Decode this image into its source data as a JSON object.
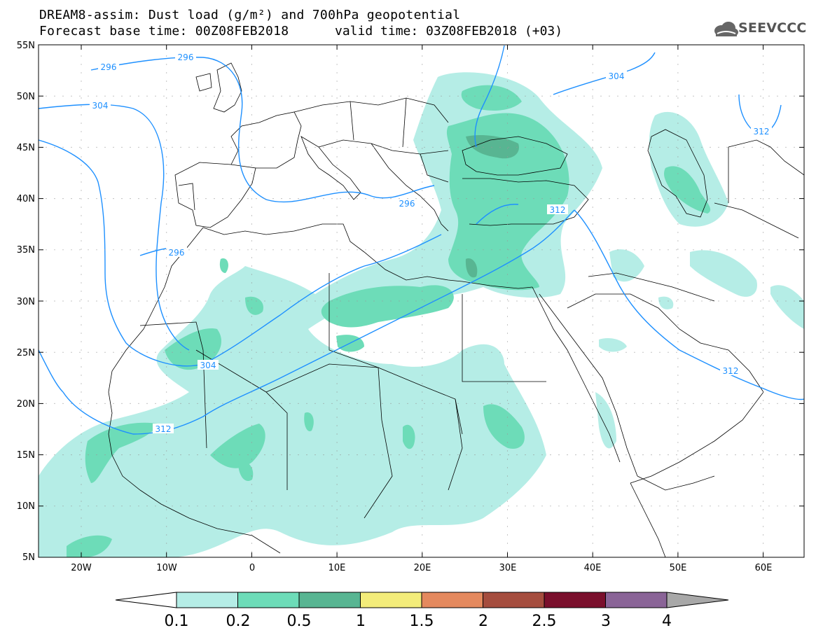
{
  "header": {
    "title_line1": "DREAM8-assim: Dust load (g/m²) and 700hPa geopotential",
    "title_line2": "Forecast base time: 00Z08FEB2018",
    "title_line2b": "valid time: 03Z08FEB2018 (+03)",
    "logo_text": "SEEVCCC"
  },
  "map": {
    "lat_labels": [
      "55N",
      "50N",
      "45N",
      "40N",
      "35N",
      "30N",
      "25N",
      "20N",
      "15N",
      "10N",
      "5N"
    ],
    "lon_labels": [
      "20W",
      "10W",
      "0",
      "10E",
      "20E",
      "30E",
      "40E",
      "50E",
      "60E"
    ],
    "contour_labels": [
      "296",
      "296",
      "304",
      "304",
      "296",
      "296",
      "312",
      "304",
      "312",
      "312",
      "312",
      "312"
    ],
    "contour_color": "#1e90ff",
    "border_color": "#000000"
  },
  "colorbar": {
    "labels": [
      "0.1",
      "0.2",
      "0.5",
      "1",
      "1.5",
      "2",
      "2.5",
      "3",
      "4"
    ],
    "colors": [
      "#b5ede6",
      "#6ddcb8",
      "#58b592",
      "#f3ec7a",
      "#e4895e",
      "#a54d3e",
      "#7a0f2c",
      "#8a6497",
      "#a8a8a8"
    ]
  }
}
